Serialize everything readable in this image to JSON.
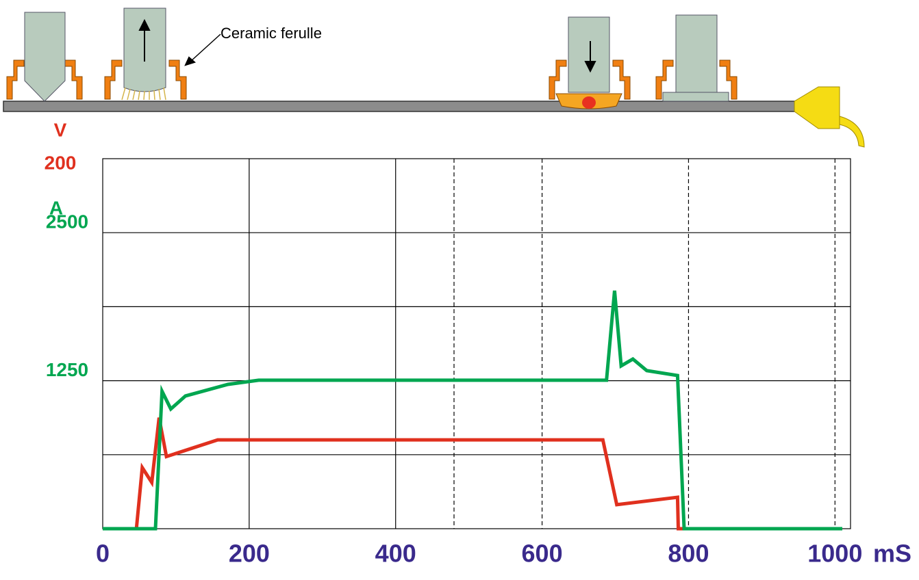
{
  "chart_data": {
    "type": "line",
    "annotation": "Ceramic ferulle",
    "ylabel": "V",
    "y2label": "A",
    "xlabel": "mS",
    "xlim": [
      0,
      1010
    ],
    "xticks": [
      0,
      200,
      400,
      600,
      800,
      1000
    ],
    "ylim": [
      0,
      200
    ],
    "yticks": [
      200
    ],
    "y2lim": [
      0,
      3125
    ],
    "y2ticks": [
      1250,
      2500
    ],
    "ylabel_color": "#e0301e",
    "y2label_color": "#00a650",
    "series": [
      {
        "name": "V",
        "color": "#e0301e",
        "x": [
          0,
          46,
          54,
          67,
          77,
          87,
          157,
          683,
          702,
          785,
          786,
          1010
        ],
        "values": [
          0,
          0,
          33,
          25,
          60,
          39,
          48,
          48,
          13,
          17,
          0,
          0
        ]
      },
      {
        "name": "A",
        "color": "#00a650",
        "axis": "y2",
        "x": [
          0,
          72,
          81,
          93,
          113,
          171,
          213,
          688,
          699,
          708,
          724,
          743,
          785,
          794,
          1010
        ],
        "values": [
          0,
          0,
          1161,
          1011,
          1121,
          1219,
          1254,
          1254,
          2010,
          1375,
          1433,
          1335,
          1294,
          0,
          0
        ]
      }
    ]
  }
}
